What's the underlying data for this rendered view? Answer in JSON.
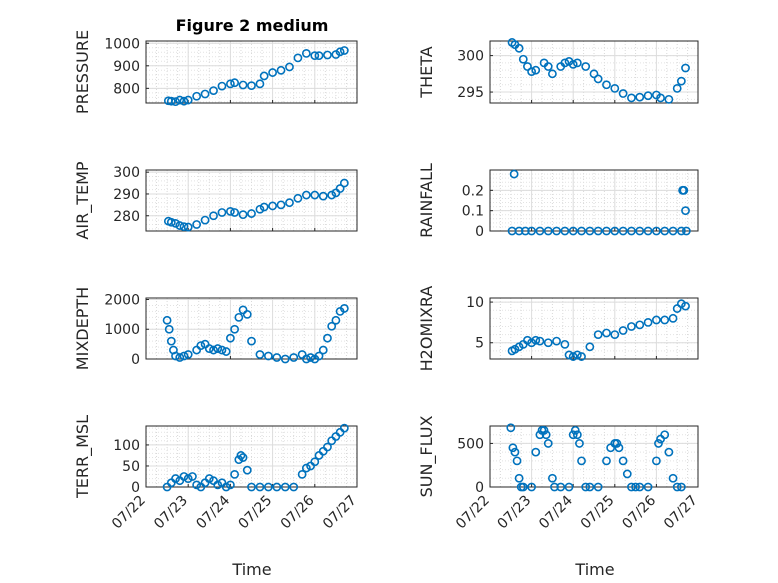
{
  "figure_title": "Figure 2 medium",
  "chart_data": [
    {
      "type": "scatter",
      "title": "Figure 2 medium",
      "ylabel": "PRESSURE",
      "xlabel": "",
      "xlim": [
        "07/22",
        "07/27"
      ],
      "xtick_labels": [
        "07/22",
        "07/23",
        "07/24",
        "07/25",
        "07/26",
        "07/27"
      ],
      "ylim": [
        735,
        1010
      ],
      "yticks": [
        800,
        900,
        1000
      ],
      "grid": true,
      "x": [
        0.53,
        0.6,
        0.7,
        0.8,
        0.9,
        1.0,
        1.2,
        1.4,
        1.6,
        1.8,
        2.0,
        2.1,
        2.3,
        2.5,
        2.7,
        2.8,
        3.0,
        3.2,
        3.4,
        3.6,
        3.8,
        4.0,
        4.1,
        4.3,
        4.5,
        4.6,
        4.7
      ],
      "y": [
        745,
        743,
        741,
        748,
        743,
        748,
        765,
        775,
        790,
        810,
        820,
        825,
        815,
        812,
        820,
        855,
        870,
        880,
        895,
        935,
        955,
        945,
        945,
        948,
        950,
        962,
        968
      ]
    },
    {
      "type": "scatter",
      "ylabel": "THETA",
      "xlabel": "",
      "xlim": [
        "07/22",
        "07/27"
      ],
      "xtick_labels": [
        "07/22",
        "07/23",
        "07/24",
        "07/25",
        "07/26",
        "07/27"
      ],
      "ylim": [
        293.5,
        302.0
      ],
      "yticks": [
        295,
        300
      ],
      "grid": true,
      "x": [
        0.53,
        0.6,
        0.7,
        0.8,
        0.9,
        1.0,
        1.1,
        1.3,
        1.4,
        1.5,
        1.7,
        1.8,
        1.9,
        2.0,
        2.1,
        2.3,
        2.5,
        2.6,
        2.8,
        3.0,
        3.2,
        3.4,
        3.6,
        3.8,
        4.0,
        4.1,
        4.3,
        4.5,
        4.6,
        4.7
      ],
      "y": [
        301.8,
        301.5,
        301.0,
        299.5,
        298.5,
        297.8,
        298.0,
        299.0,
        298.5,
        297.5,
        298.5,
        299.0,
        299.2,
        298.8,
        299.0,
        298.5,
        297.5,
        296.8,
        296.0,
        295.5,
        294.8,
        294.2,
        294.3,
        294.5,
        294.6,
        294.2,
        294.0,
        295.5,
        296.5,
        298.3
      ]
    },
    {
      "type": "scatter",
      "ylabel": "AIR_TEMP",
      "xlabel": "",
      "xlim": [
        "07/22",
        "07/27"
      ],
      "xtick_labels": [
        "07/22",
        "07/23",
        "07/24",
        "07/25",
        "07/26",
        "07/27"
      ],
      "ylim": [
        273,
        301
      ],
      "yticks": [
        280,
        290,
        300
      ],
      "grid": true,
      "x": [
        0.53,
        0.6,
        0.7,
        0.8,
        0.9,
        1.0,
        1.2,
        1.4,
        1.6,
        1.8,
        2.0,
        2.1,
        2.3,
        2.5,
        2.7,
        2.8,
        3.0,
        3.2,
        3.4,
        3.6,
        3.8,
        4.0,
        4.2,
        4.4,
        4.5,
        4.6,
        4.7
      ],
      "y": [
        277.5,
        277.0,
        276.5,
        275.5,
        275.0,
        274.8,
        276.0,
        278.0,
        280.0,
        281.5,
        282.0,
        281.5,
        280.5,
        281.0,
        283.0,
        284.0,
        284.5,
        285.0,
        286.0,
        288.0,
        289.5,
        289.5,
        289.0,
        289.5,
        290.5,
        292.5,
        295.0
      ]
    },
    {
      "type": "scatter",
      "ylabel": "RAINFALL",
      "xlabel": "",
      "xlim": [
        "07/22",
        "07/27"
      ],
      "xtick_labels": [
        "07/22",
        "07/23",
        "07/24",
        "07/25",
        "07/26",
        "07/27"
      ],
      "ylim": [
        0,
        0.3
      ],
      "yticks": [
        0,
        0.1,
        0.2
      ],
      "grid": true,
      "x": [
        0.53,
        0.58,
        0.7,
        0.85,
        1.0,
        1.2,
        1.4,
        1.6,
        1.8,
        2.0,
        2.2,
        2.4,
        2.6,
        2.8,
        3.0,
        3.2,
        3.4,
        3.6,
        3.8,
        4.0,
        4.2,
        4.4,
        4.6,
        4.63,
        4.66,
        4.7,
        4.72
      ],
      "y": [
        0,
        0.28,
        0,
        0,
        0,
        0,
        0,
        0,
        0,
        0,
        0,
        0,
        0,
        0,
        0,
        0,
        0,
        0,
        0,
        0,
        0,
        0,
        0,
        0.2,
        0.2,
        0.1,
        0
      ]
    },
    {
      "type": "scatter",
      "ylabel": "MIXDEPTH",
      "xlabel": "",
      "xlim": [
        "07/22",
        "07/27"
      ],
      "xtick_labels": [
        "07/22",
        "07/23",
        "07/24",
        "07/25",
        "07/26",
        "07/27"
      ],
      "ylim": [
        0,
        2050
      ],
      "yticks": [
        0,
        1000,
        2000
      ],
      "grid": true,
      "x": [
        0.5,
        0.55,
        0.6,
        0.65,
        0.7,
        0.8,
        0.9,
        1.0,
        1.2,
        1.3,
        1.4,
        1.5,
        1.6,
        1.7,
        1.8,
        1.9,
        2.0,
        2.1,
        2.2,
        2.3,
        2.4,
        2.5,
        2.7,
        2.9,
        3.1,
        3.3,
        3.5,
        3.7,
        3.8,
        3.9,
        4.0,
        4.1,
        4.2,
        4.3,
        4.4,
        4.5,
        4.6,
        4.7
      ],
      "y": [
        1300,
        1000,
        600,
        300,
        100,
        50,
        100,
        150,
        300,
        450,
        500,
        350,
        300,
        350,
        300,
        250,
        700,
        1000,
        1400,
        1650,
        1500,
        600,
        150,
        100,
        50,
        0,
        50,
        150,
        0,
        50,
        0,
        100,
        300,
        700,
        1100,
        1300,
        1600,
        1700
      ]
    },
    {
      "type": "scatter",
      "ylabel": "H2OMIXRA",
      "xlabel": "",
      "xlim": [
        "07/22",
        "07/27"
      ],
      "xtick_labels": [
        "07/22",
        "07/23",
        "07/24",
        "07/25",
        "07/26",
        "07/27"
      ],
      "ylim": [
        3.0,
        10.5
      ],
      "yticks": [
        5,
        10
      ],
      "grid": true,
      "x": [
        0.53,
        0.6,
        0.7,
        0.8,
        0.9,
        1.0,
        1.1,
        1.2,
        1.4,
        1.6,
        1.8,
        1.9,
        2.0,
        2.1,
        2.2,
        2.4,
        2.6,
        2.8,
        3.0,
        3.2,
        3.4,
        3.6,
        3.8,
        4.0,
        4.2,
        4.4,
        4.5,
        4.6,
        4.7
      ],
      "y": [
        4.0,
        4.2,
        4.5,
        4.8,
        5.3,
        5.0,
        5.3,
        5.2,
        5.0,
        5.2,
        4.8,
        3.5,
        3.3,
        3.5,
        3.3,
        4.5,
        6.0,
        6.2,
        6.0,
        6.5,
        7.0,
        7.2,
        7.5,
        7.8,
        7.8,
        8.0,
        9.2,
        9.8,
        9.5
      ]
    },
    {
      "type": "scatter",
      "ylabel": "TERR_MSL",
      "xlabel": "Time",
      "xlim": [
        "07/22",
        "07/27"
      ],
      "xtick_labels": [
        "07/22",
        "07/23",
        "07/24",
        "07/25",
        "07/26",
        "07/27"
      ],
      "ylim": [
        0,
        145
      ],
      "yticks": [
        0,
        50,
        100
      ],
      "grid": true,
      "x": [
        0.5,
        0.6,
        0.7,
        0.8,
        0.9,
        1.0,
        1.1,
        1.2,
        1.3,
        1.4,
        1.5,
        1.6,
        1.7,
        1.8,
        1.9,
        2.0,
        2.1,
        2.2,
        2.25,
        2.3,
        2.4,
        2.5,
        2.7,
        2.9,
        3.1,
        3.3,
        3.5,
        3.7,
        3.8,
        3.9,
        4.0,
        4.1,
        4.2,
        4.3,
        4.4,
        4.5,
        4.6,
        4.7
      ],
      "y": [
        0,
        10,
        20,
        15,
        25,
        20,
        25,
        5,
        0,
        10,
        20,
        15,
        5,
        10,
        0,
        5,
        30,
        65,
        75,
        70,
        40,
        0,
        0,
        0,
        0,
        0,
        0,
        30,
        45,
        50,
        60,
        75,
        85,
        95,
        110,
        120,
        130,
        140
      ]
    },
    {
      "type": "scatter",
      "ylabel": "SUN_FLUX",
      "xlabel": "Time",
      "xlim": [
        "07/22",
        "07/27"
      ],
      "xtick_labels": [
        "07/22",
        "07/23",
        "07/24",
        "07/25",
        "07/26",
        "07/27"
      ],
      "ylim": [
        0,
        700
      ],
      "yticks": [
        0,
        500
      ],
      "grid": true,
      "x": [
        0.5,
        0.55,
        0.6,
        0.65,
        0.7,
        0.75,
        0.8,
        1.0,
        1.1,
        1.2,
        1.25,
        1.3,
        1.35,
        1.4,
        1.5,
        1.55,
        1.7,
        1.9,
        2.0,
        2.05,
        2.1,
        2.15,
        2.2,
        2.3,
        2.4,
        2.6,
        2.8,
        2.9,
        3.0,
        3.05,
        3.1,
        3.2,
        3.3,
        3.4,
        3.5,
        3.6,
        3.8,
        4.0,
        4.05,
        4.1,
        4.2,
        4.3,
        4.4,
        4.5,
        4.6
      ],
      "y": [
        680,
        450,
        400,
        300,
        100,
        0,
        0,
        0,
        400,
        600,
        650,
        650,
        600,
        500,
        100,
        0,
        0,
        0,
        600,
        650,
        600,
        500,
        300,
        0,
        0,
        0,
        300,
        450,
        500,
        500,
        450,
        300,
        150,
        0,
        0,
        0,
        0,
        300,
        500,
        550,
        600,
        400,
        100,
        0,
        0
      ]
    }
  ]
}
